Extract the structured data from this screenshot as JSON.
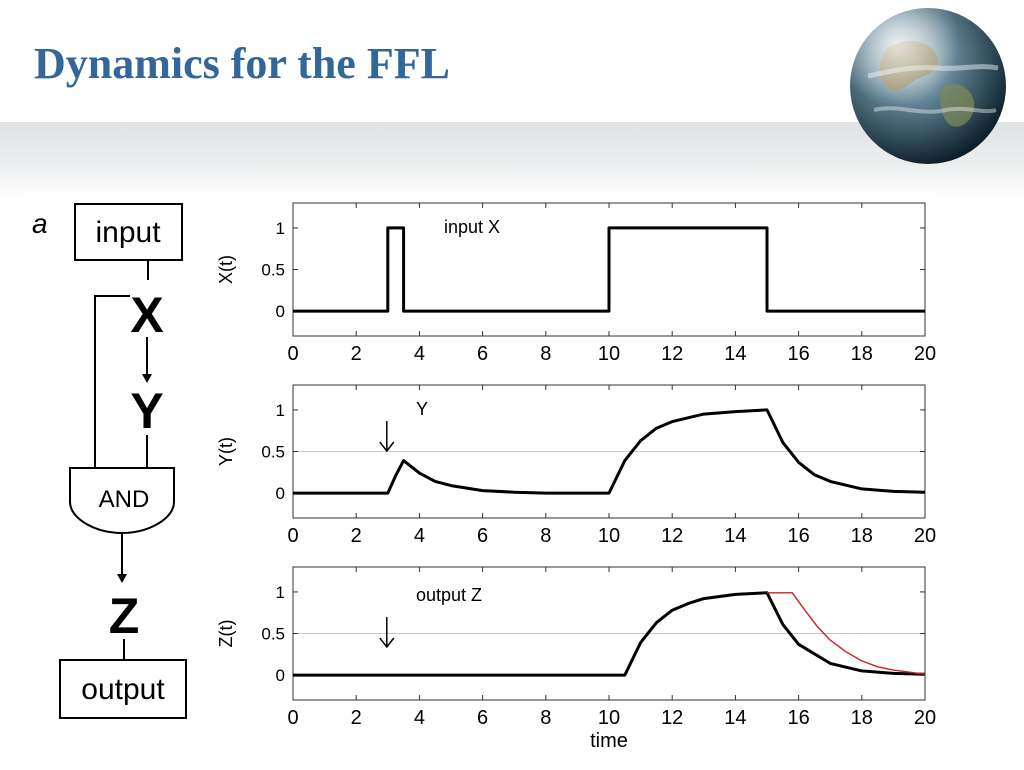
{
  "slide": {
    "title": "Dynamics for the FFL",
    "logo_icon": "globe-icon"
  },
  "diagram": {
    "panel_label": "a",
    "input_label": "input",
    "x_label": "X",
    "y_label": "Y",
    "and_label": "AND",
    "z_label": "Z",
    "output_label": "output"
  },
  "colors": {
    "title": "#336699",
    "trace": "#000000",
    "alt_trace": "#cc2222"
  },
  "chart_data": [
    {
      "type": "line",
      "ylabel": "X(t)",
      "xlabel": "",
      "xlim": [
        0,
        20
      ],
      "ylim": [
        -0.3,
        1.3
      ],
      "xticks": [
        0,
        2,
        4,
        6,
        8,
        10,
        12,
        14,
        16,
        18,
        20
      ],
      "yticks": [
        0,
        0.5,
        1
      ],
      "annotation": "input X",
      "series": [
        {
          "x": [
            0,
            3,
            3,
            3.5,
            3.5,
            10,
            10,
            15,
            15,
            20
          ],
          "y": [
            0,
            0,
            1,
            1,
            0,
            0,
            1,
            1,
            0,
            0
          ]
        }
      ]
    },
    {
      "type": "line",
      "ylabel": "Y(t)",
      "xlabel": "",
      "xlim": [
        0,
        20
      ],
      "ylim": [
        -0.3,
        1.3
      ],
      "xticks": [
        0,
        2,
        4,
        6,
        8,
        10,
        12,
        14,
        16,
        18,
        20
      ],
      "yticks": [
        0,
        0.5,
        1
      ],
      "annotation": "Y",
      "arrow_at": 3,
      "series": [
        {
          "x": [
            0,
            3,
            3.25,
            3.5,
            4,
            4.5,
            5,
            6,
            7,
            8,
            9,
            10,
            10.5,
            11,
            11.5,
            12,
            13,
            14,
            15,
            15.5,
            16,
            16.5,
            17,
            18,
            19,
            20
          ],
          "y": [
            0,
            0,
            0.21,
            0.39,
            0.24,
            0.14,
            0.09,
            0.03,
            0.01,
            0,
            0,
            0,
            0.39,
            0.63,
            0.78,
            0.86,
            0.95,
            0.98,
            1.0,
            0.61,
            0.37,
            0.22,
            0.14,
            0.05,
            0.02,
            0.01
          ]
        }
      ]
    },
    {
      "type": "line",
      "ylabel": "Z(t)",
      "xlabel": "time",
      "xlim": [
        0,
        20
      ],
      "ylim": [
        -0.3,
        1.3
      ],
      "xticks": [
        0,
        2,
        4,
        6,
        8,
        10,
        12,
        14,
        16,
        18,
        20
      ],
      "yticks": [
        0,
        0.5,
        1
      ],
      "annotation": "output Z",
      "arrow_at": 3,
      "series": [
        {
          "color": "#000000",
          "x": [
            0,
            10.5,
            11,
            11.5,
            12,
            12.5,
            13,
            14,
            15,
            15.5,
            16,
            17,
            18,
            19,
            20
          ],
          "y": [
            0,
            0,
            0.39,
            0.63,
            0.78,
            0.86,
            0.92,
            0.97,
            0.99,
            0.61,
            0.37,
            0.14,
            0.05,
            0.02,
            0.01
          ]
        },
        {
          "color": "#cc2222",
          "x": [
            15,
            15.8,
            16.2,
            16.6,
            17,
            17.5,
            18,
            18.5,
            19,
            20
          ],
          "y": [
            0.99,
            0.99,
            0.78,
            0.58,
            0.42,
            0.28,
            0.17,
            0.1,
            0.06,
            0.01
          ]
        }
      ]
    }
  ]
}
